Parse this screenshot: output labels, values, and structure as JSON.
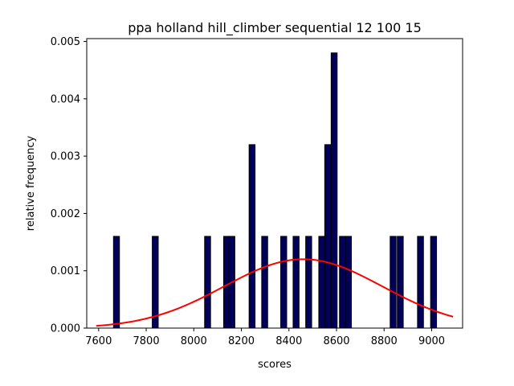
{
  "chart_data": {
    "type": "bar",
    "title": "ppa holland hill_climber sequential 12 100 15",
    "xlabel": "scores",
    "ylabel": "relative frequency",
    "xlim": [
      7550,
      9130
    ],
    "ylim": [
      0,
      0.00505
    ],
    "xticks": [
      7600,
      7800,
      8000,
      8200,
      8400,
      8600,
      8800,
      9000
    ],
    "yticks": [
      0.0,
      0.001,
      0.002,
      0.003,
      0.004,
      0.005
    ],
    "ytick_labels": [
      "0.000",
      "0.001",
      "0.002",
      "0.003",
      "0.004",
      "0.005"
    ],
    "bin_width": 25,
    "bars": [
      {
        "x": 7675,
        "value": 0.0016
      },
      {
        "x": 7838,
        "value": 0.0016
      },
      {
        "x": 8058,
        "value": 0.0016
      },
      {
        "x": 8138,
        "value": 0.0016
      },
      {
        "x": 8160,
        "value": 0.0016
      },
      {
        "x": 8245,
        "value": 0.0032
      },
      {
        "x": 8298,
        "value": 0.0016
      },
      {
        "x": 8378,
        "value": 0.0016
      },
      {
        "x": 8430,
        "value": 0.0016
      },
      {
        "x": 8483,
        "value": 0.0016
      },
      {
        "x": 8538,
        "value": 0.0016
      },
      {
        "x": 8563,
        "value": 0.0032
      },
      {
        "x": 8590,
        "value": 0.0048
      },
      {
        "x": 8625,
        "value": 0.0016
      },
      {
        "x": 8650,
        "value": 0.0016
      },
      {
        "x": 8838,
        "value": 0.0016
      },
      {
        "x": 8868,
        "value": 0.0016
      },
      {
        "x": 8953,
        "value": 0.0016
      },
      {
        "x": 9008,
        "value": 0.0016
      }
    ],
    "fit_curve": {
      "type": "normal",
      "mean": 8460,
      "std": 332,
      "x_range": [
        7590,
        9090
      ],
      "color": "#ff0000"
    },
    "bar_color": "#00005a",
    "bar_edge_color": "#000000"
  }
}
